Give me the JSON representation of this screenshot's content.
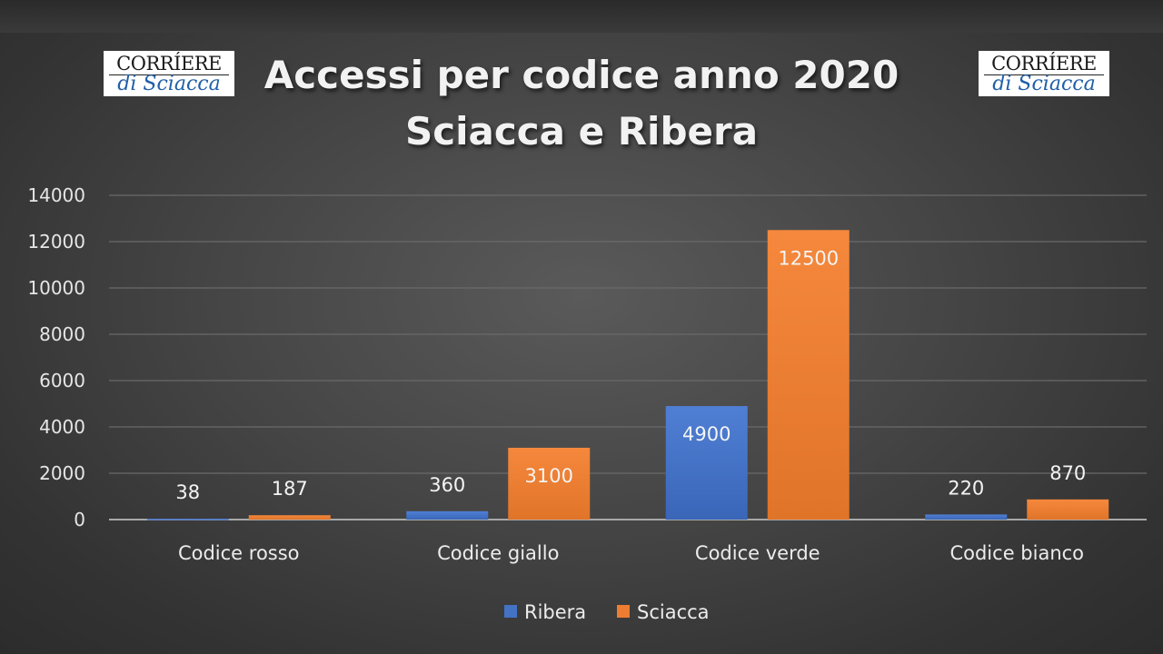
{
  "title_line1": "Accessi per codice anno 2020",
  "title_line2": "Sciacca e Ribera",
  "logo": {
    "line1": "CORRÍERE",
    "line2": "di Sciacca"
  },
  "chart_data": {
    "type": "bar",
    "title": "Accessi per codice anno 2020 Sciacca e Ribera",
    "categories": [
      "Codice rosso",
      "Codice giallo",
      "Codice verde",
      "Codice bianco"
    ],
    "series": [
      {
        "name": "Ribera",
        "values": [
          38,
          360,
          4900,
          220
        ],
        "color": "#4472c4"
      },
      {
        "name": "Sciacca",
        "values": [
          187,
          3100,
          12500,
          870
        ],
        "color": "#ed7d31"
      }
    ],
    "ylim": [
      0,
      14000
    ],
    "yticks": [
      0,
      2000,
      4000,
      6000,
      8000,
      10000,
      12000,
      14000
    ],
    "grid": true,
    "legend": "bottom"
  }
}
